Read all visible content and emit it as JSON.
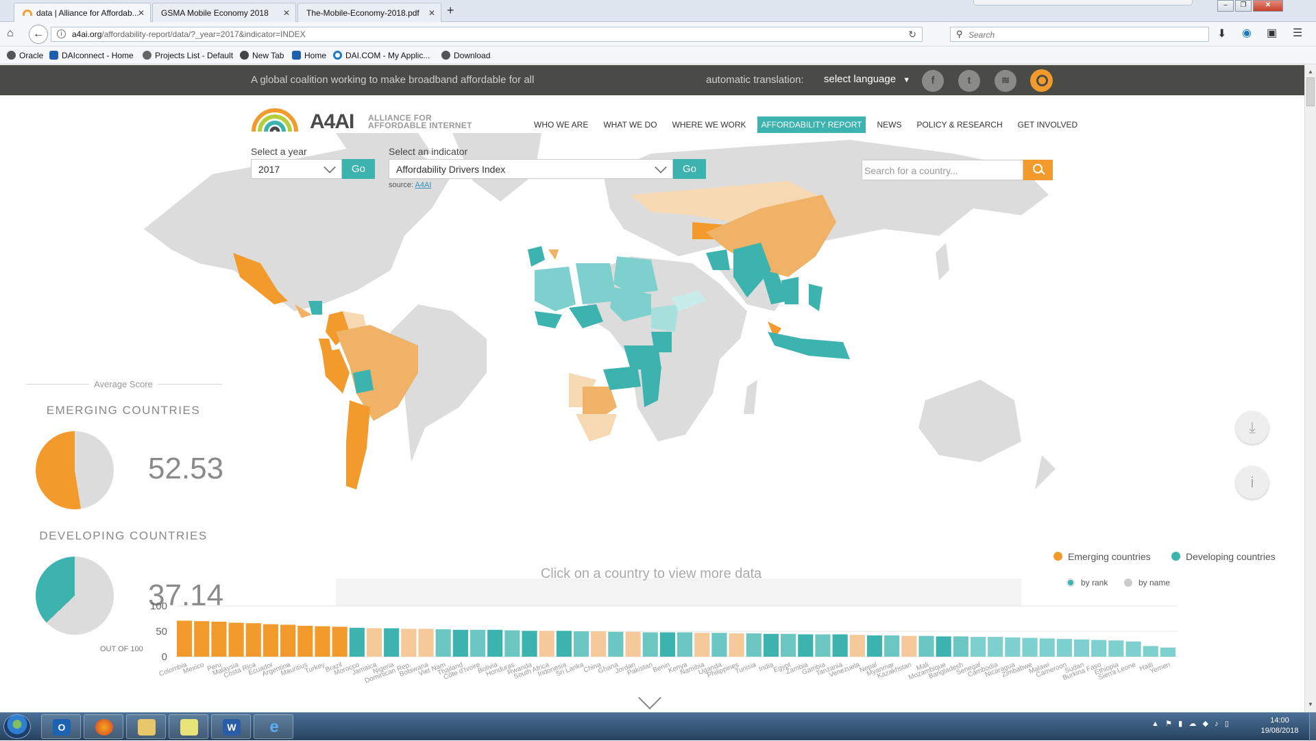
{
  "browser": {
    "tabs": [
      {
        "label": "data | Alliance for Affordab...",
        "active": true
      },
      {
        "label": "GSMA Mobile Economy 2018",
        "active": false
      },
      {
        "label": "The-Mobile-Economy-2018.pdf",
        "active": false
      }
    ],
    "url_domain": "a4ai.org",
    "url_path": "/affordability-report/data/?_year=2017&indicator=INDEX",
    "search_placeholder": "Search",
    "bookmarks": [
      {
        "label": "Oracle",
        "color": "#555555"
      },
      {
        "label": "DAIconnect - Home",
        "color": "#1f5fb0"
      },
      {
        "label": "Projects List - Default",
        "color": "#666666"
      },
      {
        "label": "New Tab",
        "color": "#444444"
      },
      {
        "label": "Home",
        "color": "#1f5fb0"
      },
      {
        "label": "DAI.COM - My Applic...",
        "color": "#1f78c8"
      },
      {
        "label": "Download",
        "color": "#555555"
      }
    ]
  },
  "site": {
    "tagline": "A global coalition working to make broadband affordable for all",
    "translate_label": "automatic translation:",
    "language_select": "select language",
    "social": [
      {
        "name": "facebook",
        "glyph": "f"
      },
      {
        "name": "twitter",
        "glyph": "t"
      },
      {
        "name": "rss",
        "glyph": "≋"
      }
    ],
    "logo_text": "A4AI",
    "logo_sub_1": "ALLIANCE FOR",
    "logo_sub_2": "AFFORDABLE INTERNET",
    "nav": [
      "WHO WE ARE",
      "WHAT WE DO",
      "WHERE WE WORK",
      "AFFORDABILITY REPORT",
      "NEWS",
      "POLICY & RESEARCH",
      "GET INVOLVED"
    ],
    "nav_active": "AFFORDABILITY REPORT",
    "year_label": "Select a year",
    "year_value": "2017",
    "indicator_label": "Select an indicator",
    "indicator_value": "Affordability Drivers Index",
    "go_label": "Go",
    "source_prefix": "source:",
    "source_link": "A4AI",
    "country_search_placeholder": "Search for a country...",
    "average_label": "Average Score",
    "emerging_title": "EMERGING COUNTRIES",
    "emerging_score": "52.53",
    "developing_title": "DEVELOPING COUNTRIES",
    "developing_score": "37.14",
    "out_of": "OUT OF 100",
    "legend": [
      {
        "label": "Emerging countries",
        "color": "#f29b2c"
      },
      {
        "label": "Developing countries",
        "color": "#3cb3ae"
      }
    ],
    "sort_options": [
      {
        "label": "by rank",
        "color": "#3cb3ae",
        "selected": true
      },
      {
        "label": "by name",
        "color": "#cccccc",
        "selected": false
      }
    ],
    "click_hint": "Click on a country to view more data",
    "colors": {
      "accent_orange": "#f29b2c",
      "accent_teal": "#3cb3ae",
      "topbar": "#4a4a47",
      "land": "#dcdcdc"
    }
  },
  "chart_data": {
    "type": "bar",
    "ylim": [
      0,
      100
    ],
    "yticks": [
      0,
      50,
      100
    ],
    "categories": [
      "Colombia",
      "Mexico",
      "Peru",
      "Malaysia",
      "Costa Rica",
      "Ecuador",
      "Argentina",
      "Mauritius",
      "Turkey",
      "Brazil",
      "Morocco",
      "Jamaica",
      "Nigeria",
      "Dominican Rep.",
      "Botswana",
      "Viet Nam",
      "Thailand",
      "Côte d'Ivoire",
      "Bolivia",
      "Honduras",
      "Rwanda",
      "South Africa",
      "Indonesia",
      "Sri Lanka",
      "China",
      "Ghana",
      "Jordan",
      "Pakistan",
      "Benin",
      "Kenya",
      "Namibia",
      "Uganda",
      "Philippines",
      "Tunisia",
      "India",
      "Egypt",
      "Zambia",
      "Gambia",
      "Tanzania",
      "Venezuela",
      "Nepal",
      "Myanmar",
      "Kazakhstan",
      "Mali",
      "Mozambique",
      "Bangladesh",
      "Senegal",
      "Cambodia",
      "Nicaragua",
      "Zimbabwe",
      "Malawi",
      "Cameroon",
      "Sudan",
      "Burkina Faso",
      "Ethiopia",
      "Sierra Leone",
      "Haiti",
      "Yemen"
    ],
    "values": [
      71,
      70,
      69,
      67,
      66,
      64,
      63,
      61,
      60,
      59,
      57,
      56,
      56,
      55,
      55,
      54,
      53,
      53,
      53,
      52,
      51,
      51,
      51,
      50,
      50,
      49,
      49,
      48,
      48,
      48,
      47,
      47,
      46,
      46,
      45,
      45,
      44,
      44,
      44,
      43,
      42,
      42,
      41,
      41,
      40,
      40,
      39,
      39,
      38,
      37,
      36,
      35,
      34,
      33,
      32,
      30,
      21,
      18
    ],
    "groups": [
      "E",
      "E",
      "E",
      "E",
      "E",
      "E",
      "E",
      "E",
      "E",
      "E",
      "D",
      "E",
      "D",
      "E",
      "E",
      "D",
      "D",
      "D",
      "D",
      "D",
      "D",
      "E",
      "D",
      "D",
      "E",
      "D",
      "E",
      "D",
      "D",
      "D",
      "E",
      "D",
      "E",
      "D",
      "D",
      "D",
      "D",
      "D",
      "D",
      "E",
      "D",
      "D",
      "E",
      "D",
      "D",
      "D",
      "D",
      "D",
      "D",
      "D",
      "D",
      "D",
      "D",
      "D",
      "D",
      "D",
      "D",
      "D"
    ],
    "series_colors": {
      "E": "#f29b2c",
      "D": "#3cb3ae"
    }
  }
}
